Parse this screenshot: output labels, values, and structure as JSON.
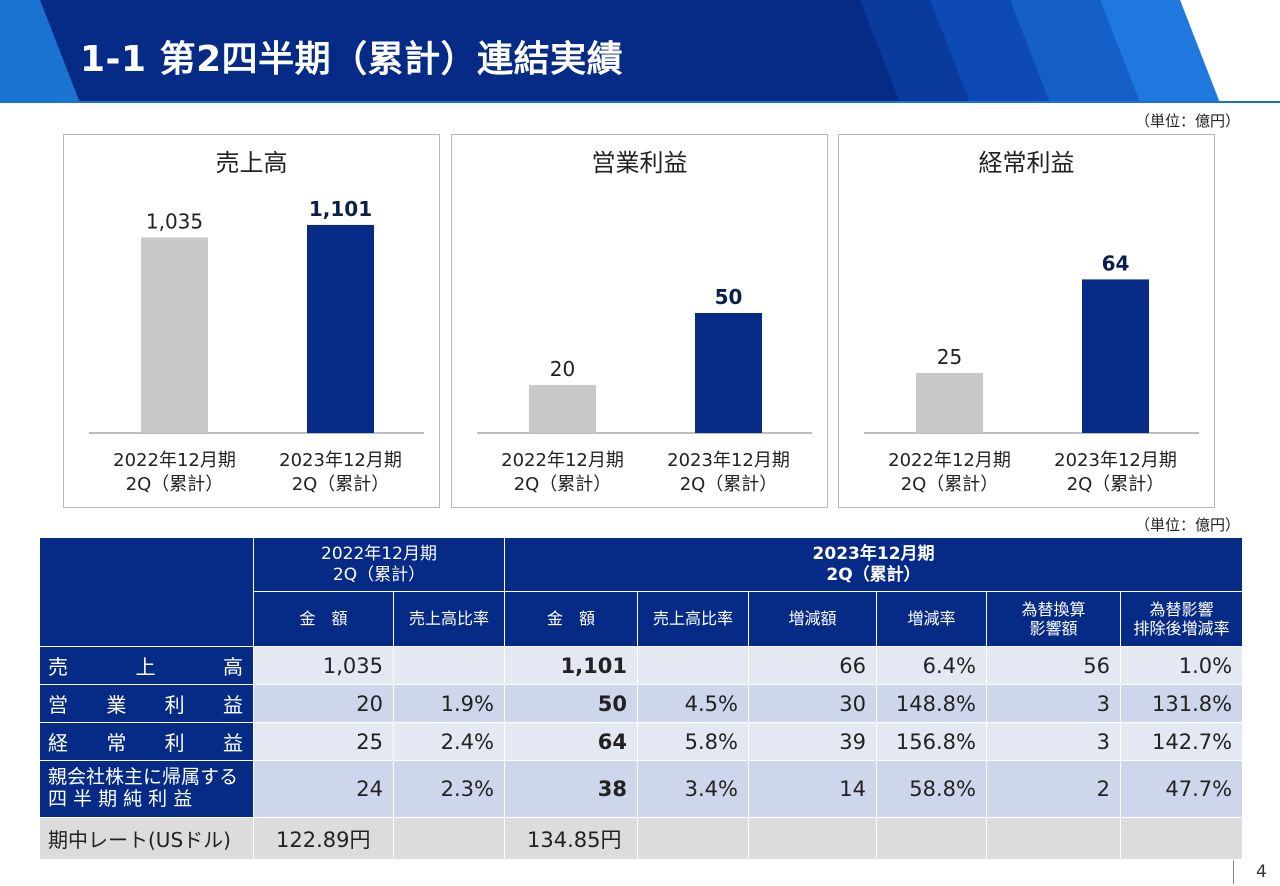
{
  "header": {
    "title": "1-1 第2四半期（累計）連結実績"
  },
  "unit_label": "（単位：億円）",
  "charts_common": {
    "categories": [
      "2022年12月期\n2Q（累計）",
      "2023年12月期\n2Q（累計）"
    ],
    "category_lines": [
      [
        "2022年12月期",
        "2Q（累計）"
      ],
      [
        "2023年12月期",
        "2Q（累計）"
      ]
    ],
    "colors": {
      "prev": "#c8c8c8",
      "curr": "#062b87"
    }
  },
  "chart_data": [
    {
      "type": "bar",
      "title": "売上高",
      "categories": [
        "2022年12月期 2Q（累計）",
        "2023年12月期 2Q（累計）"
      ],
      "values": [
        1035,
        1101
      ],
      "value_labels": [
        "1,035",
        "1,101"
      ]
    },
    {
      "type": "bar",
      "title": "営業利益",
      "categories": [
        "2022年12月期 2Q（累計）",
        "2023年12月期 2Q（累計）"
      ],
      "values": [
        20,
        50
      ],
      "value_labels": [
        "20",
        "50"
      ]
    },
    {
      "type": "bar",
      "title": "経常利益",
      "categories": [
        "2022年12月期 2Q（累計）",
        "2023年12月期 2Q（累計）"
      ],
      "values": [
        25,
        64
      ],
      "value_labels": [
        "25",
        "64"
      ]
    }
  ],
  "table": {
    "unit_label": "（単位：億円）",
    "group_headers": [
      {
        "lines": [
          "2022年12月期",
          "2Q（累計）"
        ]
      },
      {
        "lines": [
          "2023年12月期",
          "2Q（累計）"
        ]
      }
    ],
    "sub_headers": [
      "金　額",
      "売上高比率",
      "金　額",
      "売上高比率",
      "増減額",
      "増減率",
      "為替換算\n影響額",
      "為替影響\n排除後増減率"
    ],
    "sub_header_lines": [
      [
        "金　額"
      ],
      [
        "売上高比率"
      ],
      [
        "金　額"
      ],
      [
        "売上高比率"
      ],
      [
        "増減額"
      ],
      [
        "増減率"
      ],
      [
        "為替換算",
        "影響額"
      ],
      [
        "為替影響",
        "排除後増減率"
      ]
    ],
    "rows": [
      {
        "label_chars": [
          "売",
          "上",
          "高"
        ],
        "label": "売上高",
        "cells": [
          "1,035",
          "",
          "1,101",
          "",
          "66",
          "6.4%",
          "56",
          "1.0%"
        ]
      },
      {
        "label_chars": [
          "営",
          "業",
          "利",
          "益"
        ],
        "label": "営業利益",
        "cells": [
          "20",
          "1.9%",
          "50",
          "4.5%",
          "30",
          "148.8%",
          "3",
          "131.8%"
        ]
      },
      {
        "label_chars": [
          "経",
          "常",
          "利",
          "益"
        ],
        "label": "経常利益",
        "cells": [
          "25",
          "2.4%",
          "64",
          "5.8%",
          "39",
          "156.8%",
          "3",
          "142.7%"
        ]
      },
      {
        "label_lines": [
          "親会社株主に帰属する",
          "四 半 期 純 利 益"
        ],
        "label": "親会社株主に帰属する四半期純利益",
        "cells": [
          "24",
          "2.3%",
          "38",
          "3.4%",
          "14",
          "58.8%",
          "2",
          "47.7%"
        ]
      },
      {
        "label": "期中レート(USドル)",
        "cells": [
          "122.89円",
          "",
          "134.85円",
          "",
          "",
          "",
          "",
          ""
        ]
      }
    ]
  },
  "page_number": "4"
}
